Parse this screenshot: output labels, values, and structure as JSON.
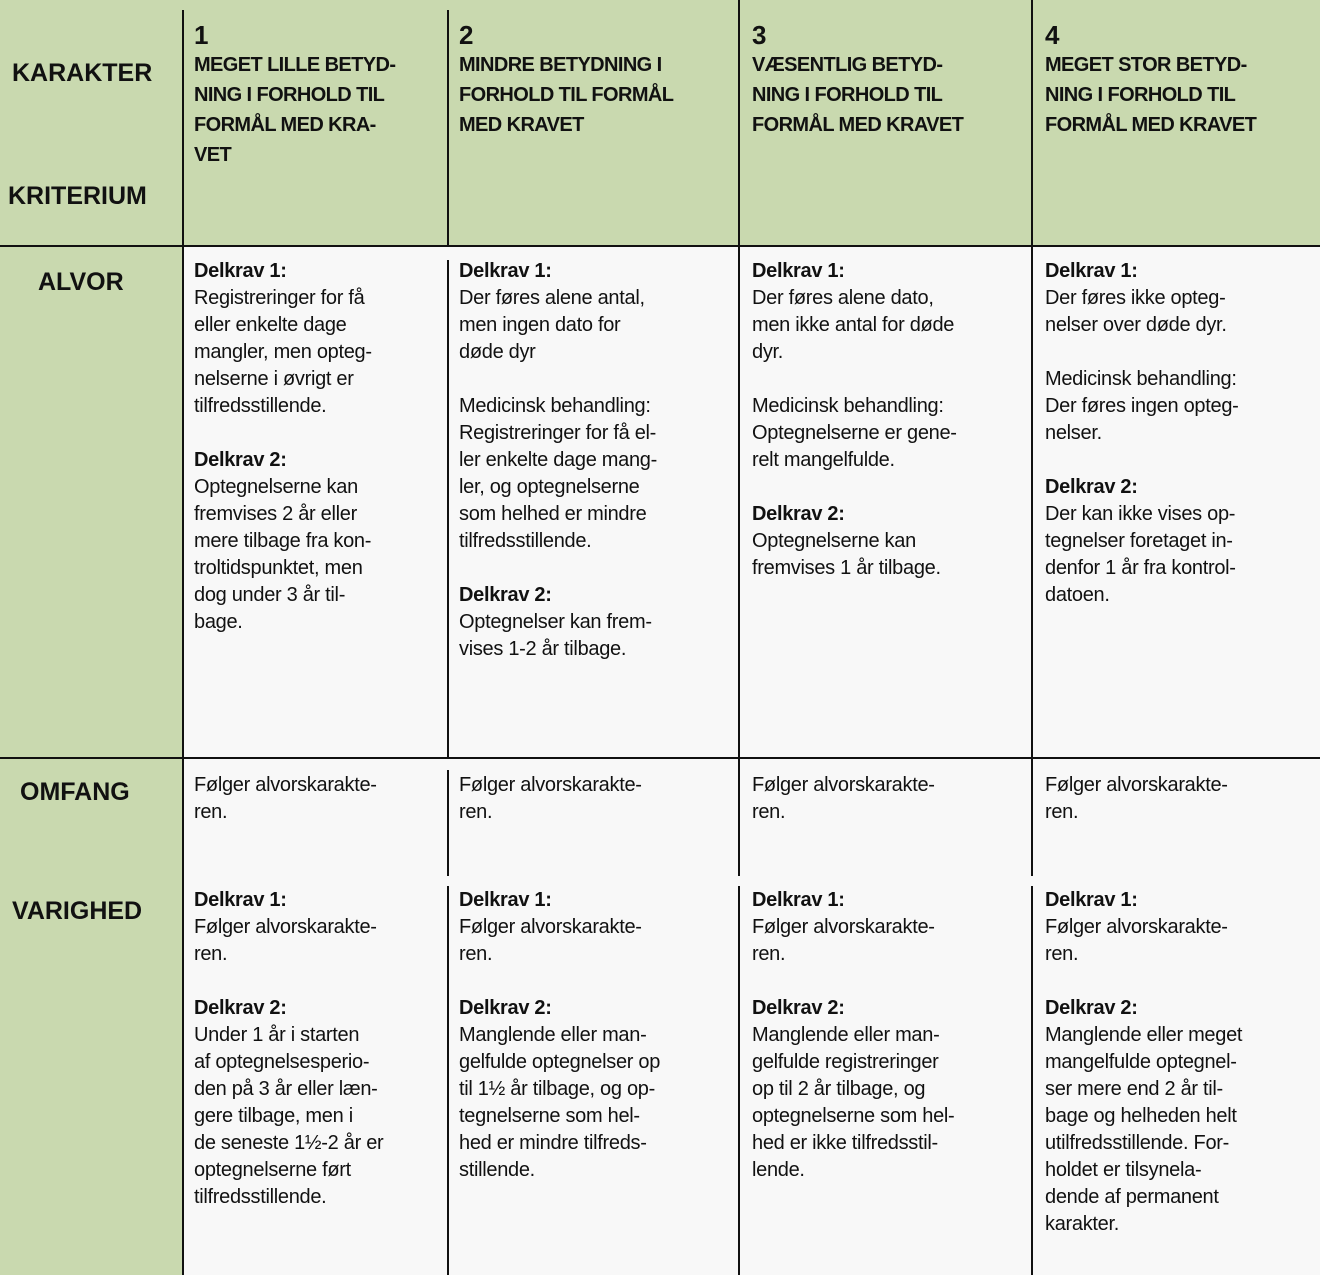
{
  "corner": {
    "top": "KARAKTER",
    "bottom": "KRITERIUM"
  },
  "columns": [
    {
      "number": "1",
      "title": "MEGET LILLE BETYD-\nNING I FORHOLD TIL\nFORMÅL MED KRA-\nVET"
    },
    {
      "number": "2",
      "title": "MINDRE BETYDNING I\nFORHOLD TIL FORMÅL\nMED KRAVET"
    },
    {
      "number": "3",
      "title": "VÆSENTLIG BETYD-\nNING I FORHOLD TIL\nFORMÅL MED KRAVET"
    },
    {
      "number": "4",
      "title": "MEGET STOR BETYD-\nNING I FORHOLD TIL\nFORMÅL MED KRAVET"
    }
  ],
  "rows": {
    "alvor": {
      "label": "ALVOR",
      "cells": [
        [
          {
            "h": "Delkrav 1:",
            "t": "Registreringer for få\neller enkelte dage\nmangler, men opteg-\nnelserne i øvrigt er\ntilfredsstillende."
          },
          {
            "h": "Delkrav 2:",
            "t": "Optegnelserne kan\nfremvises 2 år eller\nmere tilbage fra kon-\ntroltidspunktet, men\ndog under 3 år til-\nbage."
          }
        ],
        [
          {
            "h": "Delkrav 1:",
            "t": "Der føres alene antal,\nmen ingen dato for\ndøde dyr"
          },
          {
            "h": "",
            "t": "Medicinsk behandling:\nRegistreringer for få el-\nler enkelte dage mang-\nler, og optegnelserne\nsom helhed er mindre\ntilfredsstillende."
          },
          {
            "h": "Delkrav 2:",
            "t": "Optegnelser kan frem-\nvises 1-2 år tilbage."
          }
        ],
        [
          {
            "h": "Delkrav 1:",
            "t": "Der føres alene dato,\nmen ikke antal for døde\ndyr."
          },
          {
            "h": "",
            "t": "Medicinsk behandling:\nOptegnelserne er gene-\nrelt mangelfulde."
          },
          {
            "h": "Delkrav 2:",
            "t": "Optegnelserne kan\nfremvises 1 år tilbage."
          }
        ],
        [
          {
            "h": "Delkrav 1:",
            "t": "Der føres ikke opteg-\nnelser over døde dyr."
          },
          {
            "h": "",
            "t": "Medicinsk behandling:\nDer føres ingen opteg-\nnelser."
          },
          {
            "h": "Delkrav 2:",
            "t": "Der kan ikke vises op-\ntegnelser foretaget in-\ndenfor 1 år fra kontrol-\ndatoen."
          }
        ]
      ]
    },
    "omfang": {
      "label": "OMFANG",
      "cells": [
        "Følger alvorskarakte-\nren.",
        "Følger alvorskarakte-\nren.",
        "Følger alvorskarakte-\nren.",
        "Følger alvorskarakte-\nren."
      ]
    },
    "varighed": {
      "label": "VARIGHED",
      "cells": [
        [
          {
            "h": "Delkrav 1:",
            "t": "Følger alvorskarakte-\nren."
          },
          {
            "h": "Delkrav 2:",
            "t": "Under 1 år i starten\naf optegnelsesperio-\nden på 3 år eller læn-\ngere tilbage, men i\nde seneste 1½-2 år er\noptegnelserne ført\ntilfredsstillende."
          }
        ],
        [
          {
            "h": "Delkrav 1:",
            "t": "Følger alvorskarakte-\nren."
          },
          {
            "h": "Delkrav 2:",
            "t": "Manglende eller man-\ngelfulde optegnelser op\ntil 1½ år tilbage, og op-\ntegnelserne som hel-\nhed er mindre tilfreds-\nstillende."
          }
        ],
        [
          {
            "h": "Delkrav 1:",
            "t": "Følger alvorskarakte-\nren."
          },
          {
            "h": "Delkrav 2:",
            "t": "Manglende eller man-\ngelfulde registreringer\nop til 2 år tilbage, og\noptegnelserne som hel-\nhed er ikke tilfredsstil-\nlende."
          }
        ],
        [
          {
            "h": "Delkrav 1:",
            "t": "Følger alvorskarakte-\nren."
          },
          {
            "h": "Delkrav 2:",
            "t": "Manglende eller meget\nmangelfulde optegnel-\nser mere end 2 år til-\nbage og helheden helt\nutilfredsstillende. For-\nholdet er tilsynela-\ndende af permanent\nkarakter."
          }
        ]
      ]
    }
  },
  "colors": {
    "header_bg": "#c9d9af",
    "cell_bg": "#f8f8f8",
    "lines": "#111111"
  }
}
